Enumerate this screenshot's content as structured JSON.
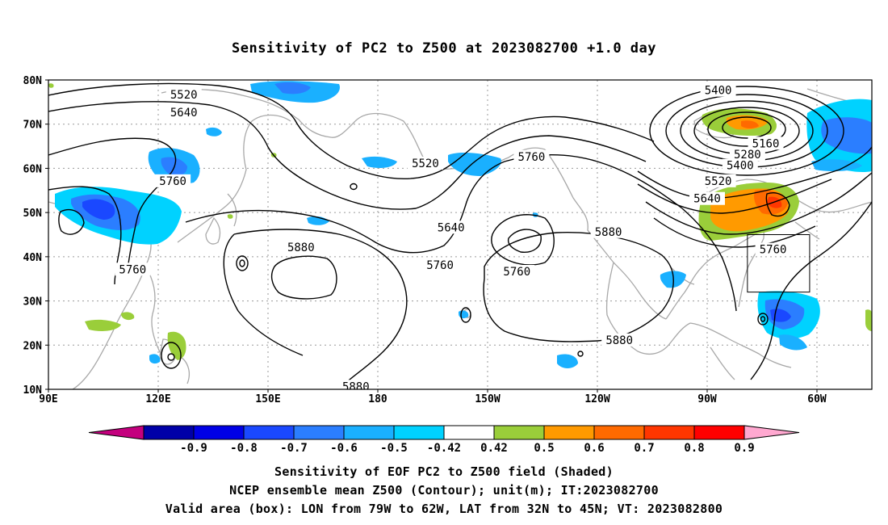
{
  "title": "Sensitivity of PC2 to Z500 at 2023082700 +1.0 day",
  "lat_labels": [
    "80N",
    "70N",
    "60N",
    "50N",
    "40N",
    "30N",
    "20N",
    "10N"
  ],
  "lon_labels": [
    "90E",
    "120E",
    "150E",
    "180",
    "150W",
    "120W",
    "90W",
    "60W"
  ],
  "contour_labels": [
    {
      "text": "5520",
      "lon": 127,
      "lat": 76.5
    },
    {
      "text": "5640",
      "lon": 127,
      "lat": 72.5
    },
    {
      "text": "5760",
      "lon": 124,
      "lat": 57
    },
    {
      "text": "5760",
      "lon": 113,
      "lat": 37
    },
    {
      "text": "5880",
      "lon": 159,
      "lat": 42
    },
    {
      "text": "5520",
      "lon": 193,
      "lat": 61
    },
    {
      "text": "5640",
      "lon": 200,
      "lat": 46.5
    },
    {
      "text": "5760",
      "lon": 197,
      "lat": 38
    },
    {
      "text": "5760",
      "lon": 222,
      "lat": 62.5
    },
    {
      "text": "5760",
      "lon": 218,
      "lat": 36.5
    },
    {
      "text": "5880",
      "lon": 243,
      "lat": 45.5
    },
    {
      "text": "5880",
      "lon": 246,
      "lat": 21
    },
    {
      "text": "5880",
      "lon": 174,
      "lat": 10.5
    },
    {
      "text": "5400",
      "lon": 273,
      "lat": 77.5
    },
    {
      "text": "5160",
      "lon": 286,
      "lat": 65.5
    },
    {
      "text": "5280",
      "lon": 281,
      "lat": 63
    },
    {
      "text": "5400",
      "lon": 279,
      "lat": 60.5
    },
    {
      "text": "5520",
      "lon": 273,
      "lat": 57
    },
    {
      "text": "5640",
      "lon": 270,
      "lat": 53
    },
    {
      "text": "5760",
      "lon": 288,
      "lat": 41.5
    }
  ],
  "colorbar": {
    "tick_labels": [
      "-0.9",
      "-0.8",
      "-0.7",
      "-0.6",
      "-0.5",
      "-0.42",
      "0.42",
      "0.5",
      "0.6",
      "0.7",
      "0.8",
      "0.9"
    ],
    "colors": [
      "#0000a8",
      "#0000e6",
      "#1a48ff",
      "#2b7eff",
      "#1ab0ff",
      "#00d2ff",
      "#ffffff",
      "#9ace3a",
      "#ff9a00",
      "#ff6a00",
      "#ff3600",
      "#ff0000"
    ],
    "left_arrow_color": "#c4007e",
    "right_arrow_color": "#ffa8d0"
  },
  "valid_box": {
    "lon_min": -79,
    "lon_max": -62,
    "lat_min": 32,
    "lat_max": 45
  },
  "captions": [
    "Sensitivity of EOF PC2 to Z500 field (Shaded)",
    "NCEP ensemble mean Z500 (Contour); unit(m); IT:2023082700",
    "Valid area (box): LON from 79W to 62W, LAT from 32N to 45N; VT: 2023082800"
  ]
}
